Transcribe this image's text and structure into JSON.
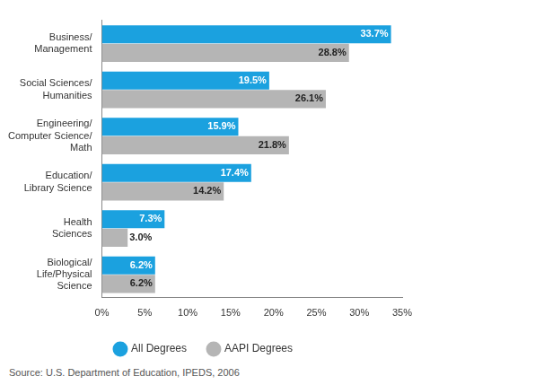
{
  "chart_data": {
    "type": "bar",
    "orientation": "horizontal",
    "categories": [
      "Business/\nManagement",
      "Social Sciences/\nHumanities",
      "Engineering/\nComputer Science/\nMath",
      "Education/\nLibrary Science",
      "Health\nSciences",
      "Biological/\nLife/Physical\nScience"
    ],
    "series": [
      {
        "name": "All Degrees",
        "color": "#1ba1df",
        "values": [
          33.7,
          19.5,
          15.9,
          17.4,
          7.3,
          6.2
        ],
        "value_labels": [
          "33.7%",
          "19.5%",
          "15.9%",
          "17.4%",
          "7.3%",
          "6.2%"
        ]
      },
      {
        "name": "AAPI Degrees",
        "color": "#b5b5b5",
        "values": [
          28.8,
          26.1,
          21.8,
          14.2,
          3.0,
          6.2
        ],
        "value_labels": [
          "28.8%",
          "26.1%",
          "21.8%",
          "14.2%",
          "3.0%",
          "6.2%"
        ]
      }
    ],
    "xlim": [
      0,
      35
    ],
    "xticks": [
      {
        "value": 0,
        "label": "0%"
      },
      {
        "value": 5,
        "label": "5%"
      },
      {
        "value": 10,
        "label": "10%"
      },
      {
        "value": 15,
        "label": "15%"
      },
      {
        "value": 20,
        "label": "20%"
      },
      {
        "value": 25,
        "label": "25%"
      },
      {
        "value": 30,
        "label": "30%"
      },
      {
        "value": 35,
        "label": "35%"
      }
    ],
    "grid": false,
    "legend": "bottom",
    "data_labels": true,
    "source": "Source: U.S. Department of Education, IPEDS, 2006"
  }
}
